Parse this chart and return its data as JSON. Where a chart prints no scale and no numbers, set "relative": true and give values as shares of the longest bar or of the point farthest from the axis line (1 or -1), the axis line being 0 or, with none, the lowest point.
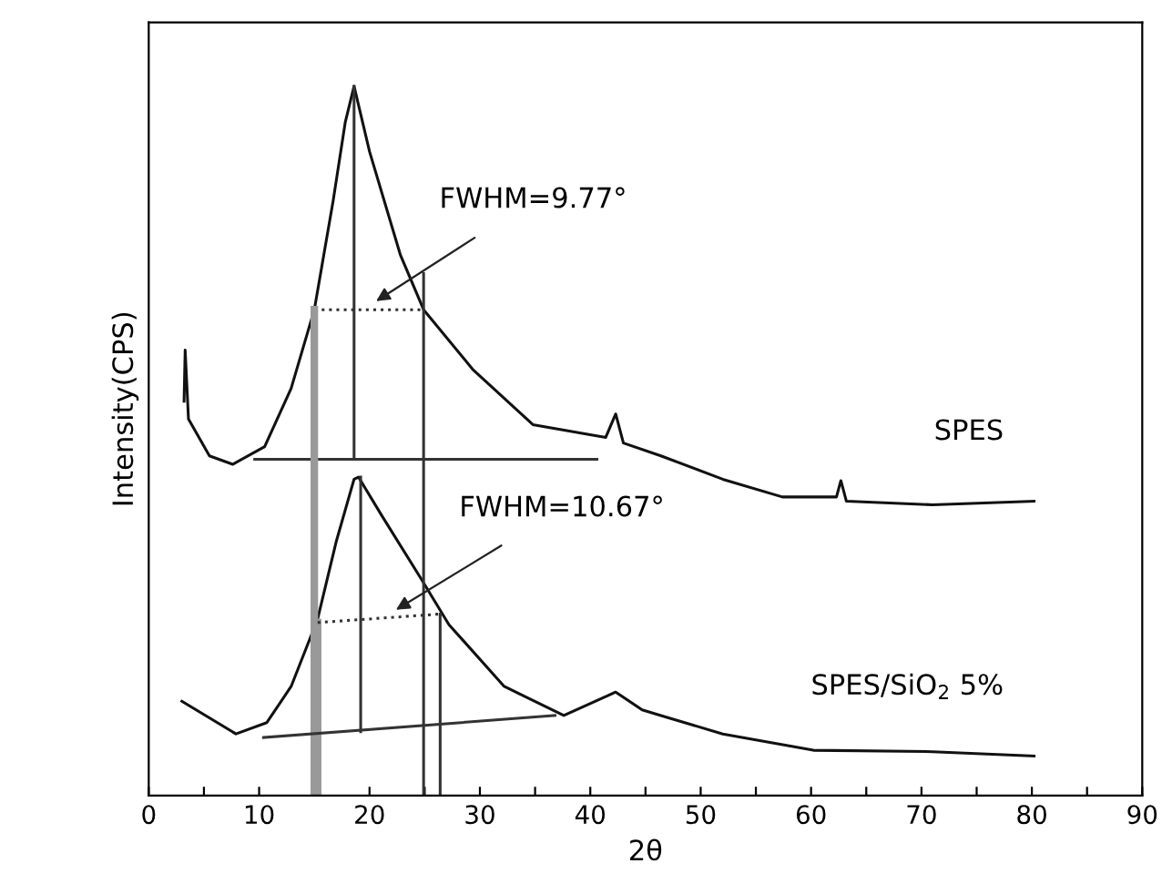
{
  "chart_data": {
    "type": "line",
    "relative": true,
    "xlabel": "2θ",
    "ylabel": "Intensity(CPS)",
    "xlim": [
      0,
      90
    ],
    "xticks": [
      0,
      {
        "value": 5,
        "label": null
      },
      10,
      {
        "value": 15,
        "label": null
      },
      20,
      {
        "value": 25,
        "label": null
      },
      30,
      {
        "value": 35,
        "label": null
      },
      40,
      {
        "value": 45,
        "label": null
      },
      50,
      {
        "value": 55,
        "label": null
      },
      60,
      {
        "value": 65,
        "label": null
      },
      70,
      {
        "value": 75,
        "label": null
      },
      80,
      {
        "value": 85,
        "label": null
      },
      90
    ],
    "grid": false,
    "legend": false,
    "marker": "none",
    "annotations": [
      {
        "text": "FWHM=9.77°",
        "x": 20.6,
        "y": 0.697
      },
      {
        "text": "FWHM=10.67°",
        "x": 22.4,
        "y": 0.262
      }
    ],
    "series": [
      {
        "name": "SPES",
        "color": "#111111",
        "x": [
          3.2,
          3.3,
          3.6,
          5.5,
          7.6,
          10.5,
          12.9,
          15.0,
          16.7,
          17.8,
          18.6,
          20.0,
          22.8,
          24.9,
          29.4,
          34.8,
          41.4,
          42.3,
          43.0,
          46.4,
          52,
          57.4,
          62.3,
          62.7,
          63.2,
          71,
          80.2
        ],
        "values": [
          0.556,
          0.628,
          0.531,
          0.479,
          0.467,
          0.492,
          0.574,
          0.685,
          0.838,
          0.949,
          1,
          0.908,
          0.762,
          0.685,
          0.6,
          0.523,
          0.505,
          0.538,
          0.497,
          0.479,
          0.446,
          0.421,
          0.421,
          0.444,
          0.415,
          0.41,
          0.415
        ]
      },
      {
        "name": "SPES/SiO$_{2}$ 5%",
        "color": "#111111",
        "x": [
          3.0,
          7.9,
          10.7,
          12.9,
          15.3,
          17,
          18.6,
          19.0,
          21.1,
          24.7,
          27.2,
          32.2,
          37.6,
          42.3,
          44.7,
          46.4,
          52,
          60.2,
          71,
          80.2
        ],
        "values": [
          0.133,
          0.087,
          0.103,
          0.154,
          0.249,
          0.359,
          0.446,
          0.449,
          0.395,
          0.305,
          0.241,
          0.154,
          0.113,
          0.146,
          0.121,
          0.113,
          0.087,
          0.064,
          0.062,
          0.056
        ]
      },
      {
        "color": "#333333",
        "x": [
          9.6,
          40.6
        ],
        "values": [
          0.474,
          0.474
        ]
      },
      {
        "color": "#333333",
        "x": [
          15.0,
          24.9
        ],
        "values": [
          0.685,
          0.685
        ],
        "line_style": "dotted"
      },
      {
        "color": "#333333",
        "x": [
          18.6,
          18.6
        ],
        "values": [
          1,
          0.474
        ]
      },
      {
        "color": "#999999",
        "x": [
          15.0,
          15.0
        ],
        "values": [
          0.685,
          0
        ]
      },
      {
        "color": "#999999",
        "x": [
          15.3,
          15.3
        ],
        "values": [
          0.244,
          0
        ]
      },
      {
        "color": "#333333",
        "x": [
          24.9,
          24.9
        ],
        "values": [
          0.736,
          0
        ]
      },
      {
        "color": "#333333",
        "x": [
          10.4,
          36.8
        ],
        "values": [
          0.082,
          0.113
        ]
      },
      {
        "color": "#333333",
        "x": [
          15.3,
          26.4
        ],
        "values": [
          0.244,
          0.256
        ],
        "line_style": "dotted"
      },
      {
        "color": "#333333",
        "x": [
          19.2,
          19.2
        ],
        "values": [
          0.449,
          0.09
        ]
      },
      {
        "color": "#333333",
        "x": [
          26.4,
          26.4
        ],
        "values": [
          0.256,
          0
        ]
      }
    ]
  }
}
